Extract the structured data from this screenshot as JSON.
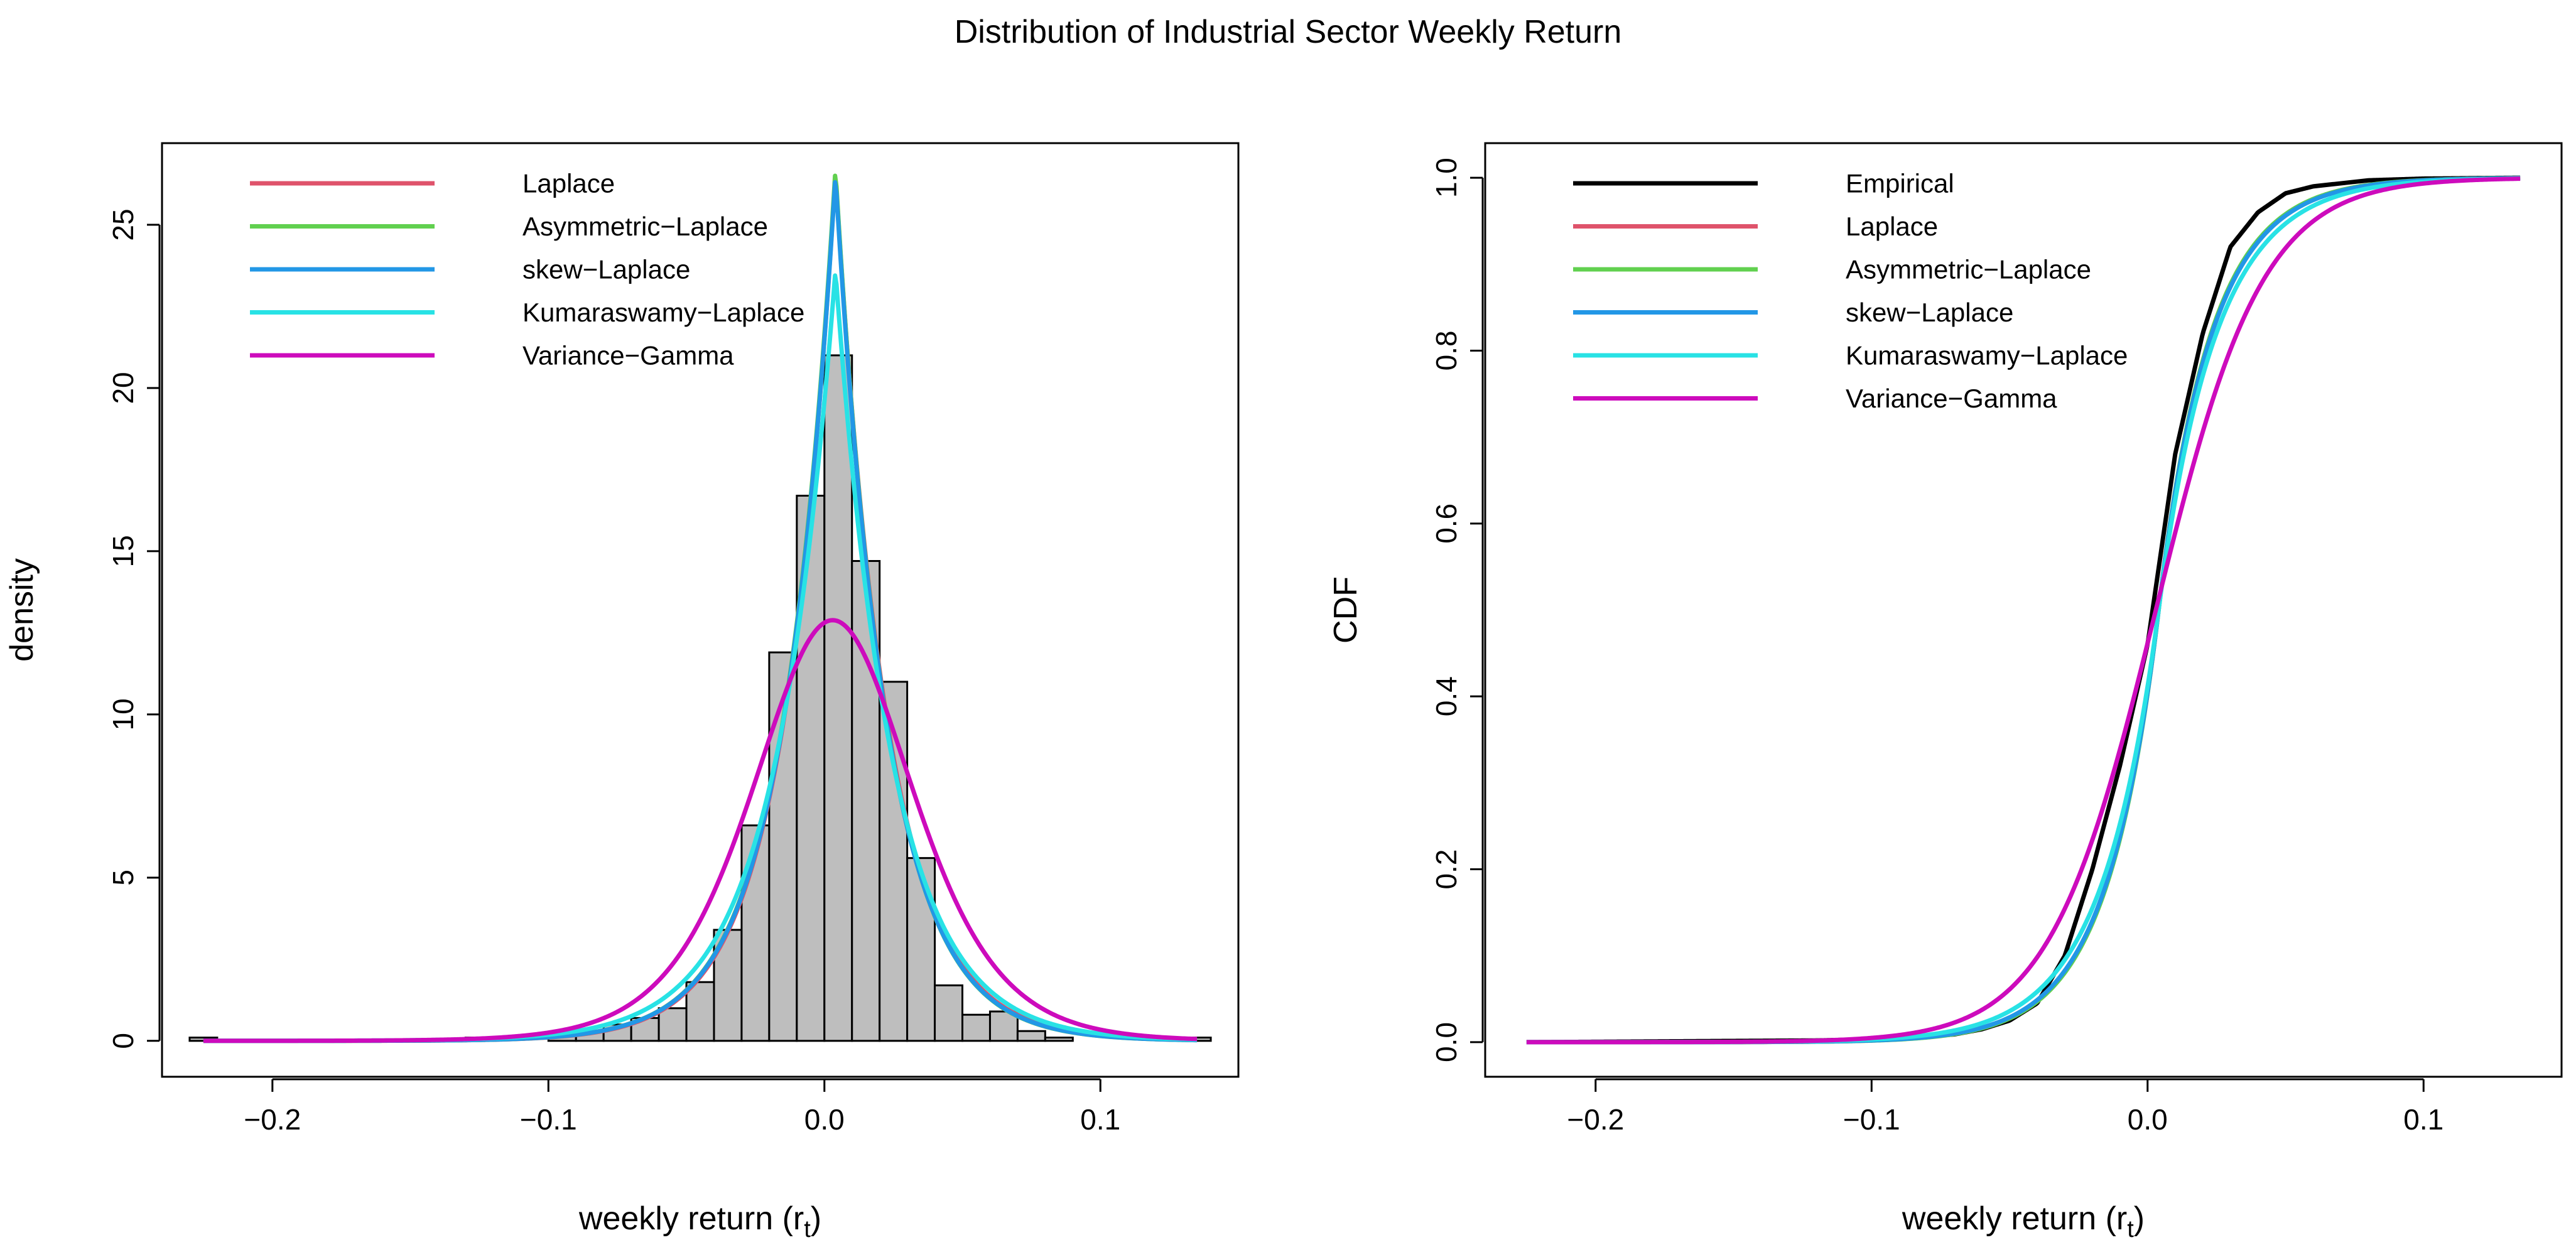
{
  "figure": {
    "title": "Distribution of Industrial Sector Weekly Return"
  },
  "chart_data": [
    {
      "type": "bar",
      "subtype": "histogram with fitted density curves",
      "xlabel": "weekly return (r",
      "xlabel_subscript": "t",
      "xlabel_suffix": ")",
      "ylabel": "density",
      "xlim": [
        -0.24,
        0.15
      ],
      "ylim": [
        -1.1,
        27.5
      ],
      "xticks": [
        -0.2,
        -0.1,
        0.0,
        0.1
      ],
      "xtick_labels": [
        "−0.2",
        "−0.1",
        "0.0",
        "0.1"
      ],
      "yticks": [
        0,
        5,
        10,
        15,
        20,
        25
      ],
      "ytick_labels": [
        "0",
        "5",
        "10",
        "15",
        "20",
        "25"
      ],
      "grid": false,
      "legend_position": "top-left",
      "histogram": {
        "bin_width": 0.01,
        "fill_color": "#bebebe",
        "bins": [
          {
            "x0": -0.23,
            "x1": -0.22,
            "density": 0.1
          },
          {
            "x0": -0.13,
            "x1": -0.12,
            "density": 0.1
          },
          {
            "x0": -0.1,
            "x1": -0.09,
            "density": 0.2
          },
          {
            "x0": -0.09,
            "x1": -0.08,
            "density": 0.3
          },
          {
            "x0": -0.08,
            "x1": -0.07,
            "density": 0.5
          },
          {
            "x0": -0.07,
            "x1": -0.06,
            "density": 0.7
          },
          {
            "x0": -0.06,
            "x1": -0.05,
            "density": 1.0
          },
          {
            "x0": -0.05,
            "x1": -0.04,
            "density": 1.8
          },
          {
            "x0": -0.04,
            "x1": -0.03,
            "density": 3.4
          },
          {
            "x0": -0.03,
            "x1": -0.02,
            "density": 6.6
          },
          {
            "x0": -0.02,
            "x1": -0.01,
            "density": 11.9
          },
          {
            "x0": -0.01,
            "x1": 0.0,
            "density": 16.7
          },
          {
            "x0": 0.0,
            "x1": 0.01,
            "density": 21.0
          },
          {
            "x0": 0.01,
            "x1": 0.02,
            "density": 14.7
          },
          {
            "x0": 0.02,
            "x1": 0.03,
            "density": 11.0
          },
          {
            "x0": 0.03,
            "x1": 0.04,
            "density": 5.6
          },
          {
            "x0": 0.04,
            "x1": 0.05,
            "density": 1.7
          },
          {
            "x0": 0.05,
            "x1": 0.06,
            "density": 0.8
          },
          {
            "x0": 0.06,
            "x1": 0.07,
            "density": 0.9
          },
          {
            "x0": 0.07,
            "x1": 0.08,
            "density": 0.3
          },
          {
            "x0": 0.08,
            "x1": 0.09,
            "density": 0.1
          },
          {
            "x0": 0.13,
            "x1": 0.14,
            "density": 0.1
          }
        ]
      },
      "series": [
        {
          "name": "Laplace",
          "color": "#df536b",
          "model": "laplace",
          "params": {
            "mu": 0.004,
            "b": 0.0188
          }
        },
        {
          "name": "Asymmetric−Laplace",
          "color": "#61d04f",
          "model": "asym-laplace",
          "params": {
            "mu": 0.004,
            "peak": 26.7,
            "left_scale": 0.019,
            "right_scale": 0.0185
          }
        },
        {
          "name": "skew−Laplace",
          "color": "#2297e6",
          "model": "asym-laplace",
          "params": {
            "mu": 0.004,
            "peak": 26.5,
            "left_scale": 0.019,
            "right_scale": 0.0186
          }
        },
        {
          "name": "Kumaraswamy−Laplace",
          "color": "#28e2e5",
          "model": "asym-laplace",
          "params": {
            "mu": 0.004,
            "peak": 23.6,
            "left_scale": 0.0215,
            "right_scale": 0.0205
          }
        },
        {
          "name": "Variance−Gamma",
          "color": "#cd0bbc",
          "model": "logistic-pdf",
          "params": {
            "mu": 0.003,
            "s": 0.0194
          }
        }
      ]
    },
    {
      "type": "line",
      "subtype": "cumulative distribution functions",
      "xlabel": "weekly return (r",
      "xlabel_subscript": "t",
      "xlabel_suffix": ")",
      "ylabel": "CDF",
      "xlim": [
        -0.24,
        0.15
      ],
      "ylim": [
        -0.04,
        1.04
      ],
      "xticks": [
        -0.2,
        -0.1,
        0.0,
        0.1
      ],
      "xtick_labels": [
        "−0.2",
        "−0.1",
        "0.0",
        "0.1"
      ],
      "yticks": [
        0.0,
        0.2,
        0.4,
        0.6,
        0.8,
        1.0
      ],
      "ytick_labels": [
        "0.0",
        "0.2",
        "0.4",
        "0.6",
        "0.8",
        "1.0"
      ],
      "grid": false,
      "legend_position": "top-left",
      "x_range": [
        -0.225,
        0.135
      ],
      "series": [
        {
          "name": "Empirical",
          "color": "#000000",
          "model": "empirical",
          "points": [
            [
              -0.225,
              0.0
            ],
            [
              -0.12,
              0.002
            ],
            [
              -0.09,
              0.004
            ],
            [
              -0.07,
              0.009
            ],
            [
              -0.06,
              0.015
            ],
            [
              -0.05,
              0.025
            ],
            [
              -0.04,
              0.045
            ],
            [
              -0.03,
              0.1
            ],
            [
              -0.02,
              0.2
            ],
            [
              -0.01,
              0.32
            ],
            [
              0.0,
              0.46
            ],
            [
              0.01,
              0.68
            ],
            [
              0.02,
              0.82
            ],
            [
              0.03,
              0.92
            ],
            [
              0.04,
              0.96
            ],
            [
              0.05,
              0.982
            ],
            [
              0.06,
              0.99
            ],
            [
              0.08,
              0.997
            ],
            [
              0.1,
              0.999
            ],
            [
              0.135,
              1.0
            ]
          ]
        },
        {
          "name": "Laplace",
          "color": "#df536b",
          "model": "laplace-cdf",
          "params": {
            "mu": 0.004,
            "b": 0.0188
          }
        },
        {
          "name": "Asymmetric−Laplace",
          "color": "#61d04f",
          "model": "laplace-cdf",
          "params": {
            "mu": 0.004,
            "b": 0.0186
          }
        },
        {
          "name": "skew−Laplace",
          "color": "#2297e6",
          "model": "laplace-cdf",
          "params": {
            "mu": 0.004,
            "b": 0.0189
          }
        },
        {
          "name": "Kumaraswamy−Laplace",
          "color": "#28e2e5",
          "model": "laplace-cdf",
          "params": {
            "mu": 0.004,
            "b": 0.0205
          }
        },
        {
          "name": "Variance−Gamma",
          "color": "#cd0bbc",
          "model": "logistic-cdf",
          "params": {
            "mu": 0.003,
            "s": 0.0194
          }
        }
      ]
    }
  ]
}
